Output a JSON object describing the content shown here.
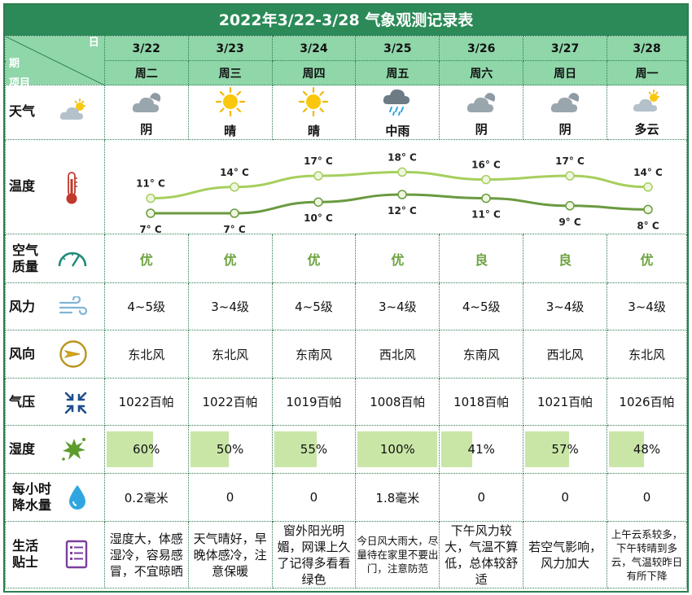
{
  "title": "2022年3/22-3/28 气象观测记录表",
  "corner": {
    "day_label": "日",
    "period_label": "期",
    "item_label": "项目"
  },
  "days": [
    {
      "date": "3/22",
      "weekday": "周二",
      "weather": "阴",
      "icon": "cloudy-icon",
      "aq": "优",
      "wind_force": "4~5级",
      "wind_dir": "东北风",
      "pressure": "1022百帕",
      "humidity": "60%",
      "humidity_value": 60,
      "rain": "0.2毫米",
      "tip": "湿度大，体感湿冷，容易感冒，不宜晾晒"
    },
    {
      "date": "3/23",
      "weekday": "周三",
      "weather": "晴",
      "icon": "sun-icon",
      "aq": "优",
      "wind_force": "3~4级",
      "wind_dir": "东北风",
      "pressure": "1022百帕",
      "humidity": "50%",
      "humidity_value": 50,
      "rain": "0",
      "tip": "天气晴好，早晚体感冷，注意保暖"
    },
    {
      "date": "3/24",
      "weekday": "周四",
      "weather": "晴",
      "icon": "sun-icon",
      "aq": "优",
      "wind_force": "4~5级",
      "wind_dir": "东南风",
      "pressure": "1019百帕",
      "humidity": "55%",
      "humidity_value": 55,
      "rain": "0",
      "tip": "窗外阳光明媚，网课上久了记得多看看绿色"
    },
    {
      "date": "3/25",
      "weekday": "周五",
      "weather": "中雨",
      "icon": "rain-cloud-icon",
      "aq": "优",
      "wind_force": "3~4级",
      "wind_dir": "西北风",
      "pressure": "1008百帕",
      "humidity": "100%",
      "humidity_value": 100,
      "rain": "1.8毫米",
      "tip": "今日风大雨大，尽量待在家里不要出门，注意防范"
    },
    {
      "date": "3/26",
      "weekday": "周六",
      "weather": "阴",
      "icon": "cloudy-icon",
      "aq": "良",
      "wind_force": "4~5级",
      "wind_dir": "东南风",
      "pressure": "1018百帕",
      "humidity": "41%",
      "humidity_value": 41,
      "rain": "0",
      "tip": "下午风力较大，气温不算低，总体较舒适"
    },
    {
      "date": "3/27",
      "weekday": "周日",
      "weather": "阴",
      "icon": "cloudy-icon",
      "aq": "良",
      "wind_force": "3~4级",
      "wind_dir": "西北风",
      "pressure": "1021百帕",
      "humidity": "57%",
      "humidity_value": 57,
      "rain": "0",
      "tip": "若空气影响，风力加大"
    },
    {
      "date": "3/28",
      "weekday": "周一",
      "weather": "多云",
      "icon": "partly-cloudy-icon",
      "aq": "优",
      "wind_force": "3~4级",
      "wind_dir": "东北风",
      "pressure": "1026百帕",
      "humidity": "48%",
      "humidity_value": 48,
      "rain": "0",
      "tip": "上午云系较多，下午转晴到多云，气温较昨日有所下降"
    }
  ],
  "rows": {
    "weather": "天气",
    "temperature": "温度",
    "air_quality": "空气质量",
    "wind_force": "风力",
    "wind_dir": "风向",
    "pressure": "气压",
    "humidity": "湿度",
    "rain": "每小时降水量",
    "tips": "生活贴士"
  },
  "temperature": {
    "high": [
      11,
      14,
      17,
      18,
      16,
      17,
      14
    ],
    "low": [
      7,
      7,
      10,
      12,
      11,
      9,
      8
    ],
    "high_labels": [
      "11° C",
      "14° C",
      "17° C",
      "18° C",
      "16° C",
      "17° C",
      "14° C"
    ],
    "low_labels": [
      "7° C",
      "7° C",
      "10° C",
      "12° C",
      "11° C",
      "9° C",
      "8° C"
    ],
    "colors": {
      "high": "#a6cf5d",
      "low": "#6a9a3f"
    }
  },
  "colors": {
    "header": "#2b8a57",
    "subheader": "#8fd6a9",
    "humidity_bar": "#c9e6a7",
    "aq_text": "#6da33f"
  }
}
